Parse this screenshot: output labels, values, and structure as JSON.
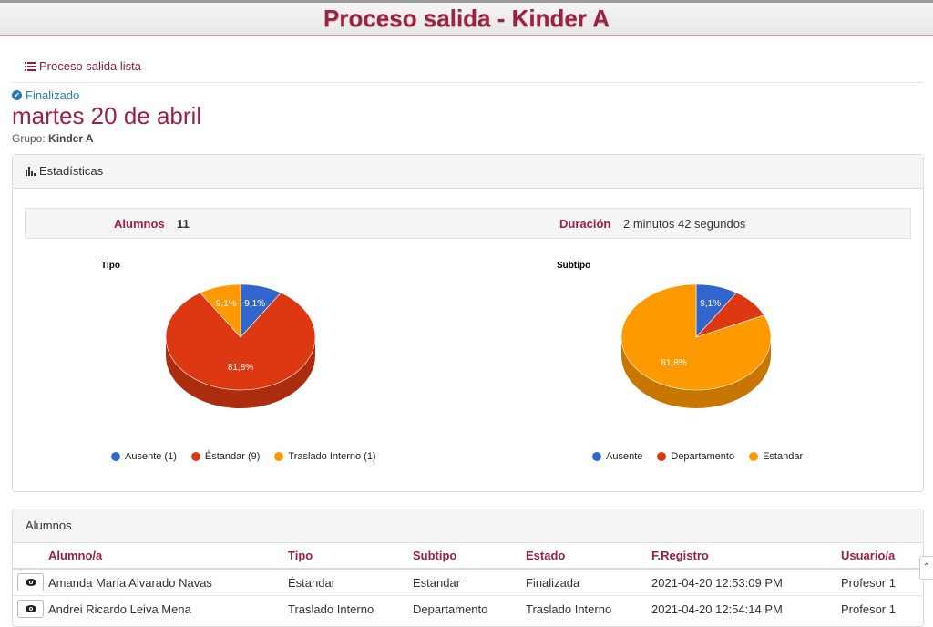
{
  "header": {
    "title": "Proceso salida - Kinder A"
  },
  "nav": {
    "list_link": "Proceso salida lista"
  },
  "status": {
    "label": "Finalizado"
  },
  "page": {
    "date_title": "martes 20 de abril",
    "group_label": "Grupo:",
    "group_value": "Kinder A"
  },
  "stats": {
    "heading": "Estadísticas",
    "alumnos_label": "Alumnos",
    "alumnos_value": "11",
    "duracion_label": "Duración",
    "duracion_value": "2 minutos 42 segundos"
  },
  "colors": {
    "blue": "#3366cc",
    "red": "#dc3912",
    "orange": "#ff9900",
    "brand": "#a0213f"
  },
  "chart_data": [
    {
      "type": "pie",
      "title": "Tipo",
      "categories": [
        "Ausente (1)",
        "Éstandar (9)",
        "Traslado Interno (1)"
      ],
      "values": [
        1,
        9,
        1
      ],
      "data_labels": [
        "9,1%",
        "81,8%",
        "9,1%"
      ],
      "legend": "bottom"
    },
    {
      "type": "pie",
      "title": "Subtipo",
      "categories": [
        "Ausente",
        "Departamento",
        "Estandar"
      ],
      "values": [
        1,
        1,
        9
      ],
      "data_labels": [
        "9,1%",
        "",
        "81,8%"
      ],
      "legend": "bottom"
    }
  ],
  "alumnos_panel": {
    "heading": "Alumnos",
    "columns": [
      "Alumno/a",
      "Tipo",
      "Subtipo",
      "Estado",
      "F.Registro",
      "Usuario/a"
    ],
    "rows": [
      [
        "Amanda María Alvarado Navas",
        "Éstandar",
        "Estandar",
        "Finalizada",
        "2021-04-20 12:53:09 PM",
        "Profesor 1"
      ],
      [
        "Andrei Ricardo Leiva Mena",
        "Traslado Interno",
        "Departamento",
        "Traslado Interno",
        "2021-04-20 12:54:14 PM",
        "Profesor 1"
      ]
    ]
  }
}
